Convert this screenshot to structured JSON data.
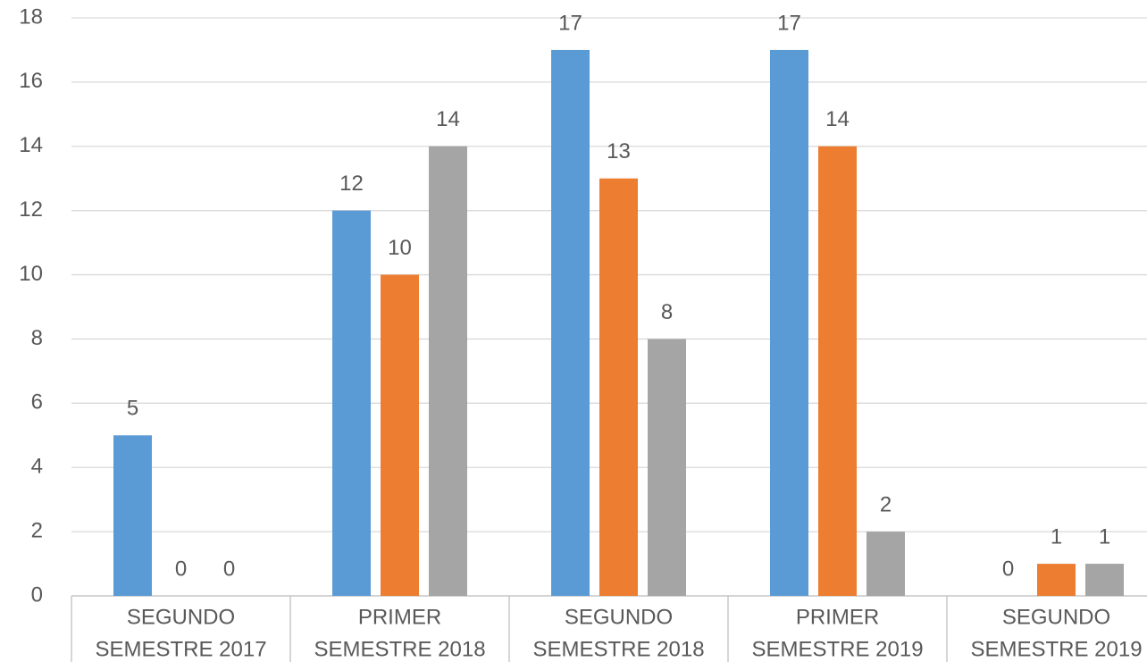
{
  "chart_data": {
    "type": "bar",
    "categories": [
      [
        "SEGUNDO",
        "SEMESTRE 2017"
      ],
      [
        "PRIMER",
        "SEMESTRE 2018"
      ],
      [
        "SEGUNDO",
        "SEMESTRE 2018"
      ],
      [
        "PRIMER",
        "SEMESTRE 2019"
      ],
      [
        "SEGUNDO",
        "SEMESTRE 2019"
      ]
    ],
    "series": [
      {
        "color": "#5b9bd5",
        "values": [
          5,
          12,
          17,
          17,
          0
        ]
      },
      {
        "color": "#ed7d31",
        "values": [
          0,
          10,
          13,
          14,
          1
        ]
      },
      {
        "color": "#a5a5a5",
        "values": [
          0,
          14,
          8,
          2,
          1
        ]
      }
    ],
    "ylim": [
      0,
      18
    ],
    "yticks": [
      0,
      2,
      4,
      6,
      8,
      10,
      12,
      14,
      16,
      18
    ],
    "grid": true,
    "data_labels": true
  }
}
